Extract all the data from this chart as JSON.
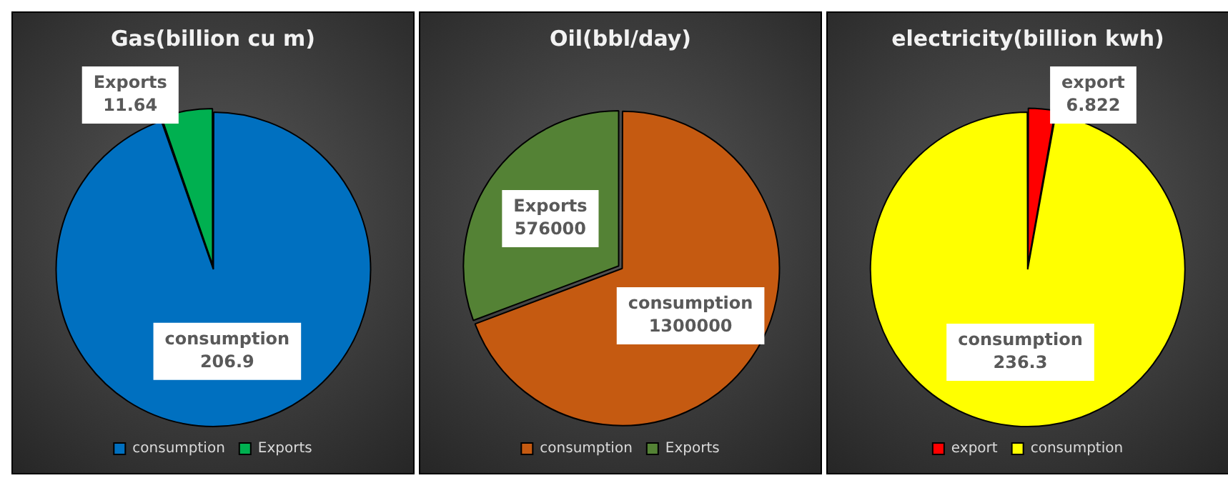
{
  "chart_data": [
    {
      "type": "pie",
      "title": "Gas(billion cu m)",
      "categories": [
        "consumption",
        "Exports"
      ],
      "values": [
        206.9,
        11.64
      ],
      "colors": [
        "#0070c0",
        "#00b050"
      ],
      "legend": "bottom",
      "data_labels": true
    },
    {
      "type": "pie",
      "title": "Oil(bbl/day)",
      "categories": [
        "consumption",
        "Exports"
      ],
      "values": [
        1300000,
        576000
      ],
      "colors": [
        "#c55a11",
        "#548235"
      ],
      "legend": "bottom",
      "data_labels": true
    },
    {
      "type": "pie",
      "title": "electricity(billion kwh)",
      "categories": [
        "export",
        "consumption"
      ],
      "values": [
        6.822,
        236.3
      ],
      "colors": [
        "#ff0000",
        "#ffff00"
      ],
      "legend": "bottom",
      "data_labels": true
    }
  ]
}
